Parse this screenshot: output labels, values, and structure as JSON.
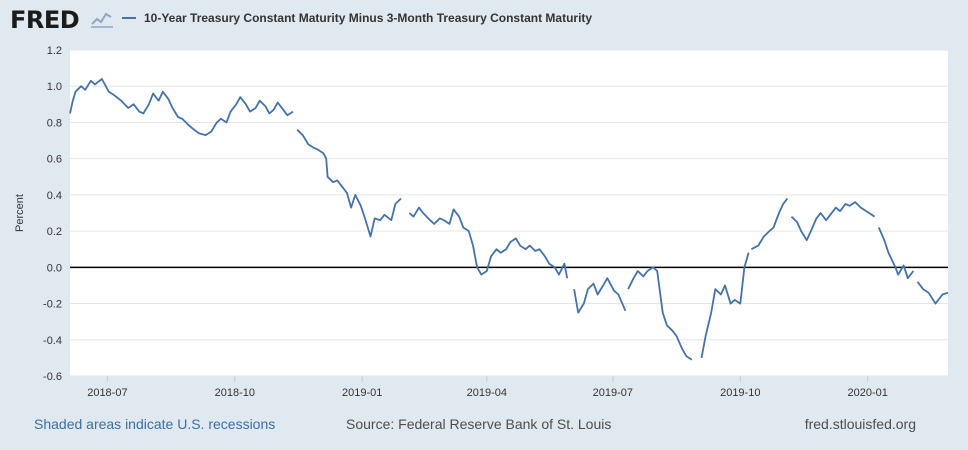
{
  "brand": {
    "logo_text": "FRED"
  },
  "colors": {
    "series": "#4572a7",
    "background": "#e1e9f0",
    "plot_bg": "#ffffff",
    "grid": "#e6e6e6",
    "zero_line": "#000000",
    "link": "#3b6ea5"
  },
  "footer": {
    "recessions_note": "Shaded areas indicate U.S. recessions",
    "source": "Source: Federal Reserve Bank of St. Louis",
    "site": "fred.stlouisfed.org"
  },
  "chart_data": {
    "type": "line",
    "title": "",
    "xlabel": "",
    "ylabel": "Percent",
    "ylim": [
      -0.6,
      1.2
    ],
    "xlim": [
      "2018-06-04",
      "2020-02-28"
    ],
    "y_ticks": [
      "-0.6",
      "-0.4",
      "-0.2",
      "0.0",
      "0.2",
      "0.4",
      "0.6",
      "0.8",
      "1.0",
      "1.2"
    ],
    "x_ticks": [
      {
        "label": "2018-07",
        "date": "2018-07-01"
      },
      {
        "label": "2018-10",
        "date": "2018-10-01"
      },
      {
        "label": "2019-01",
        "date": "2019-01-01"
      },
      {
        "label": "2019-04",
        "date": "2019-04-01"
      },
      {
        "label": "2019-07",
        "date": "2019-07-01"
      },
      {
        "label": "2019-10",
        "date": "2019-10-01"
      },
      {
        "label": "2020-01",
        "date": "2020-01-01"
      }
    ],
    "reference_line": {
      "y": 0
    },
    "grid": true,
    "legend_position": "top-left",
    "series": [
      {
        "name": "10-Year Treasury Constant Maturity Minus 3-Month Treasury Constant Maturity",
        "segments": [
          [
            [
              "2018-06-04",
              0.85
            ],
            [
              "2018-06-06",
              0.92
            ],
            [
              "2018-06-08",
              0.97
            ],
            [
              "2018-06-12",
              1.0
            ],
            [
              "2018-06-15",
              0.98
            ],
            [
              "2018-06-19",
              1.03
            ],
            [
              "2018-06-22",
              1.01
            ],
            [
              "2018-06-27",
              1.04
            ],
            [
              "2018-07-02",
              0.97
            ],
            [
              "2018-07-06",
              0.95
            ],
            [
              "2018-07-11",
              0.92
            ],
            [
              "2018-07-16",
              0.88
            ],
            [
              "2018-07-20",
              0.9
            ],
            [
              "2018-07-24",
              0.86
            ],
            [
              "2018-07-27",
              0.85
            ],
            [
              "2018-07-31",
              0.9
            ],
            [
              "2018-08-03",
              0.96
            ],
            [
              "2018-08-07",
              0.92
            ],
            [
              "2018-08-10",
              0.97
            ],
            [
              "2018-08-14",
              0.93
            ],
            [
              "2018-08-17",
              0.88
            ],
            [
              "2018-08-21",
              0.83
            ],
            [
              "2018-08-24",
              0.82
            ],
            [
              "2018-08-28",
              0.79
            ],
            [
              "2018-08-31",
              0.77
            ],
            [
              "2018-09-05",
              0.74
            ],
            [
              "2018-09-10",
              0.73
            ],
            [
              "2018-09-14",
              0.75
            ],
            [
              "2018-09-18",
              0.8
            ],
            [
              "2018-09-21",
              0.82
            ],
            [
              "2018-09-25",
              0.8
            ],
            [
              "2018-09-28",
              0.86
            ],
            [
              "2018-10-02",
              0.9
            ],
            [
              "2018-10-05",
              0.94
            ],
            [
              "2018-10-09",
              0.9
            ],
            [
              "2018-10-12",
              0.86
            ],
            [
              "2018-10-16",
              0.88
            ],
            [
              "2018-10-19",
              0.92
            ],
            [
              "2018-10-23",
              0.89
            ],
            [
              "2018-10-26",
              0.85
            ],
            [
              "2018-10-29",
              0.87
            ],
            [
              "2018-11-01",
              0.91
            ],
            [
              "2018-11-05",
              0.87
            ],
            [
              "2018-11-08",
              0.84
            ],
            [
              "2018-11-12",
              0.86
            ]
          ],
          [
            [
              "2018-11-15",
              0.76
            ],
            [
              "2018-11-19",
              0.73
            ],
            [
              "2018-11-23",
              0.68
            ],
            [
              "2018-11-27",
              0.66
            ],
            [
              "2018-11-30",
              0.65
            ],
            [
              "2018-12-04",
              0.63
            ],
            [
              "2018-12-06",
              0.6
            ],
            [
              "2018-12-07",
              0.5
            ],
            [
              "2018-12-11",
              0.47
            ],
            [
              "2018-12-14",
              0.48
            ],
            [
              "2018-12-18",
              0.44
            ],
            [
              "2018-12-21",
              0.41
            ],
            [
              "2018-12-24",
              0.33
            ],
            [
              "2018-12-27",
              0.4
            ],
            [
              "2018-12-31",
              0.34
            ],
            [
              "2019-01-03",
              0.27
            ],
            [
              "2019-01-07",
              0.17
            ],
            [
              "2019-01-10",
              0.27
            ],
            [
              "2019-01-14",
              0.26
            ],
            [
              "2019-01-17",
              0.29
            ],
            [
              "2019-01-22",
              0.26
            ],
            [
              "2019-01-25",
              0.35
            ],
            [
              "2019-01-29",
              0.38
            ]
          ],
          [
            [
              "2019-02-04",
              0.3
            ],
            [
              "2019-02-07",
              0.28
            ],
            [
              "2019-02-11",
              0.33
            ],
            [
              "2019-02-14",
              0.3
            ],
            [
              "2019-02-19",
              0.26
            ],
            [
              "2019-02-22",
              0.24
            ],
            [
              "2019-02-26",
              0.27
            ],
            [
              "2019-03-01",
              0.26
            ],
            [
              "2019-03-05",
              0.24
            ],
            [
              "2019-03-08",
              0.32
            ],
            [
              "2019-03-12",
              0.28
            ],
            [
              "2019-03-15",
              0.22
            ],
            [
              "2019-03-19",
              0.2
            ],
            [
              "2019-03-22",
              0.12
            ],
            [
              "2019-03-25",
              0.0
            ],
            [
              "2019-03-28",
              -0.04
            ],
            [
              "2019-04-01",
              -0.02
            ],
            [
              "2019-04-04",
              0.06
            ],
            [
              "2019-04-08",
              0.1
            ],
            [
              "2019-04-11",
              0.08
            ],
            [
              "2019-04-15",
              0.1
            ],
            [
              "2019-04-18",
              0.14
            ],
            [
              "2019-04-22",
              0.16
            ],
            [
              "2019-04-25",
              0.12
            ],
            [
              "2019-04-29",
              0.1
            ],
            [
              "2019-05-02",
              0.12
            ],
            [
              "2019-05-06",
              0.09
            ],
            [
              "2019-05-09",
              0.1
            ],
            [
              "2019-05-13",
              0.06
            ],
            [
              "2019-05-16",
              0.02
            ],
            [
              "2019-05-20",
              0.0
            ],
            [
              "2019-05-23",
              -0.04
            ],
            [
              "2019-05-27",
              0.02
            ],
            [
              "2019-05-29",
              -0.06
            ]
          ],
          [
            [
              "2019-06-03",
              -0.12
            ],
            [
              "2019-06-06",
              -0.25
            ],
            [
              "2019-06-10",
              -0.2
            ],
            [
              "2019-06-13",
              -0.12
            ],
            [
              "2019-06-17",
              -0.09
            ],
            [
              "2019-06-20",
              -0.15
            ],
            [
              "2019-06-24",
              -0.1
            ],
            [
              "2019-06-27",
              -0.06
            ],
            [
              "2019-07-02",
              -0.13
            ],
            [
              "2019-07-05",
              -0.15
            ],
            [
              "2019-07-09",
              -0.22
            ],
            [
              "2019-07-10",
              -0.24
            ]
          ],
          [
            [
              "2019-07-12",
              -0.12
            ],
            [
              "2019-07-16",
              -0.06
            ],
            [
              "2019-07-19",
              -0.02
            ],
            [
              "2019-07-23",
              -0.05
            ],
            [
              "2019-07-26",
              -0.02
            ],
            [
              "2019-07-30",
              0.0
            ],
            [
              "2019-08-02",
              -0.02
            ],
            [
              "2019-08-06",
              -0.25
            ],
            [
              "2019-08-09",
              -0.32
            ],
            [
              "2019-08-13",
              -0.35
            ],
            [
              "2019-08-16",
              -0.38
            ],
            [
              "2019-08-20",
              -0.45
            ],
            [
              "2019-08-23",
              -0.49
            ],
            [
              "2019-08-27",
              -0.51
            ]
          ],
          [
            [
              "2019-09-03",
              -0.5
            ],
            [
              "2019-09-06",
              -0.38
            ],
            [
              "2019-09-10",
              -0.25
            ],
            [
              "2019-09-13",
              -0.12
            ],
            [
              "2019-09-17",
              -0.15
            ],
            [
              "2019-09-20",
              -0.1
            ],
            [
              "2019-09-24",
              -0.2
            ],
            [
              "2019-09-27",
              -0.18
            ],
            [
              "2019-10-01",
              -0.2
            ],
            [
              "2019-10-04",
              0.0
            ],
            [
              "2019-10-07",
              0.08
            ]
          ],
          [
            [
              "2019-10-09",
              0.1
            ],
            [
              "2019-10-14",
              0.12
            ],
            [
              "2019-10-18",
              0.17
            ],
            [
              "2019-10-22",
              0.2
            ],
            [
              "2019-10-25",
              0.22
            ],
            [
              "2019-10-29",
              0.3
            ],
            [
              "2019-11-01",
              0.35
            ],
            [
              "2019-11-04",
              0.38
            ]
          ],
          [
            [
              "2019-11-07",
              0.28
            ],
            [
              "2019-11-11",
              0.25
            ],
            [
              "2019-11-14",
              0.2
            ],
            [
              "2019-11-18",
              0.15
            ],
            [
              "2019-11-21",
              0.2
            ],
            [
              "2019-11-25",
              0.27
            ],
            [
              "2019-11-28",
              0.3
            ],
            [
              "2019-12-02",
              0.26
            ],
            [
              "2019-12-05",
              0.29
            ],
            [
              "2019-12-09",
              0.33
            ],
            [
              "2019-12-12",
              0.31
            ],
            [
              "2019-12-16",
              0.35
            ],
            [
              "2019-12-19",
              0.34
            ],
            [
              "2019-12-23",
              0.36
            ],
            [
              "2019-12-27",
              0.33
            ],
            [
              "2020-01-02",
              0.3
            ],
            [
              "2020-01-06",
              0.28
            ]
          ],
          [
            [
              "2020-01-09",
              0.22
            ],
            [
              "2020-01-13",
              0.15
            ],
            [
              "2020-01-16",
              0.08
            ],
            [
              "2020-01-21",
              0.0
            ],
            [
              "2020-01-23",
              -0.04
            ],
            [
              "2020-01-27",
              0.01
            ],
            [
              "2020-01-30",
              -0.06
            ],
            [
              "2020-02-03",
              -0.02
            ]
          ],
          [
            [
              "2020-02-06",
              -0.08
            ],
            [
              "2020-02-10",
              -0.12
            ],
            [
              "2020-02-14",
              -0.14
            ],
            [
              "2020-02-19",
              -0.2
            ],
            [
              "2020-02-24",
              -0.15
            ],
            [
              "2020-02-28",
              -0.14
            ]
          ]
        ]
      }
    ]
  }
}
